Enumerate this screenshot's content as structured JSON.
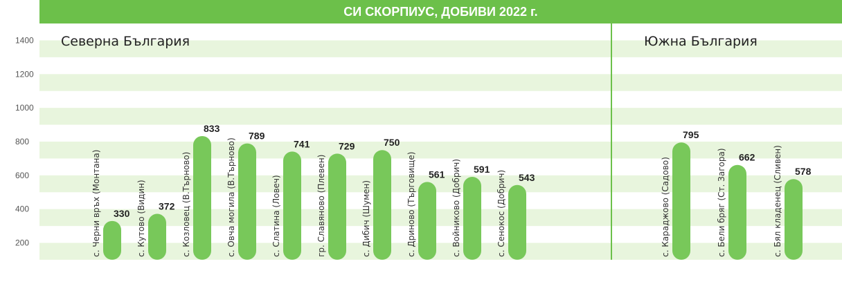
{
  "title": "СИ СКОРПИУС, ДОБИВИ 2022 г.",
  "regions": {
    "north": "Северна България",
    "south": "Южна България"
  },
  "colors": {
    "bar": "#78c85a",
    "band": "#e8f5dd",
    "title_bg": "#6cc04a",
    "divider": "#6cc04a"
  },
  "chart_data": {
    "type": "bar",
    "title": "СИ СКОРПИУС, ДОБИВИ 2022 г.",
    "yticks": [
      200,
      400,
      600,
      800,
      1000,
      1200,
      1400
    ],
    "ylim": [
      100,
      1500
    ],
    "grid": "alternating bands",
    "groups": [
      {
        "name": "Северна България",
        "categories": [
          "с. Черни връх (Монтана)",
          "с. Кутово (Видин)",
          "с. Козловец (В.Търново)",
          "с. Овча могила (В.Търново)",
          "с. Слатина (Ловеч)",
          "гр. Славяново (Плевен)",
          "с. Дибич (Шумен)",
          "с. Дриново (Търговище)",
          "с. Войниково (Добрич)",
          "с. Сенокос (Добрич)"
        ],
        "values": [
          330,
          372,
          833,
          789,
          741,
          729,
          750,
          561,
          591,
          543
        ]
      },
      {
        "name": "Южна България",
        "categories": [
          "с. Караджово (Садово)",
          "с. Бели бряг (Ст. Загора)",
          "с. Бял кладенец (Сливен)"
        ],
        "values": [
          795,
          662,
          578
        ]
      }
    ]
  }
}
